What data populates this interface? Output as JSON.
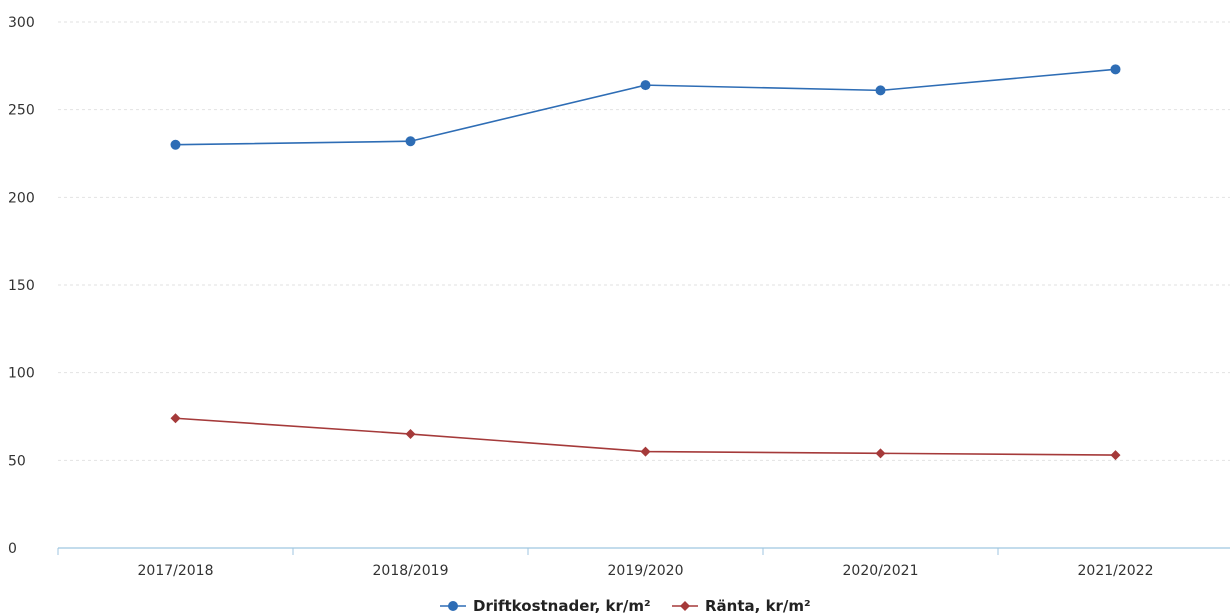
{
  "chart_data": {
    "type": "line",
    "categories": [
      "2017/2018",
      "2018/2019",
      "2019/2020",
      "2020/2021",
      "2021/2022"
    ],
    "series": [
      {
        "name": "Driftkostnader, kr/m²",
        "values": [
          230,
          232,
          264,
          261,
          273
        ],
        "color": "#2e6db5",
        "marker": "circle"
      },
      {
        "name": "Ränta, kr/m²",
        "values": [
          74,
          65,
          55,
          54,
          53
        ],
        "color": "#a53a3a",
        "marker": "diamond"
      }
    ],
    "yticks": [
      0,
      50,
      100,
      150,
      200,
      250,
      300
    ],
    "ylim": [
      0,
      300
    ],
    "grid": true,
    "legend_position": "bottom-center",
    "axis_color": "#9fc6e0",
    "grid_color": "#e2e2e2"
  }
}
